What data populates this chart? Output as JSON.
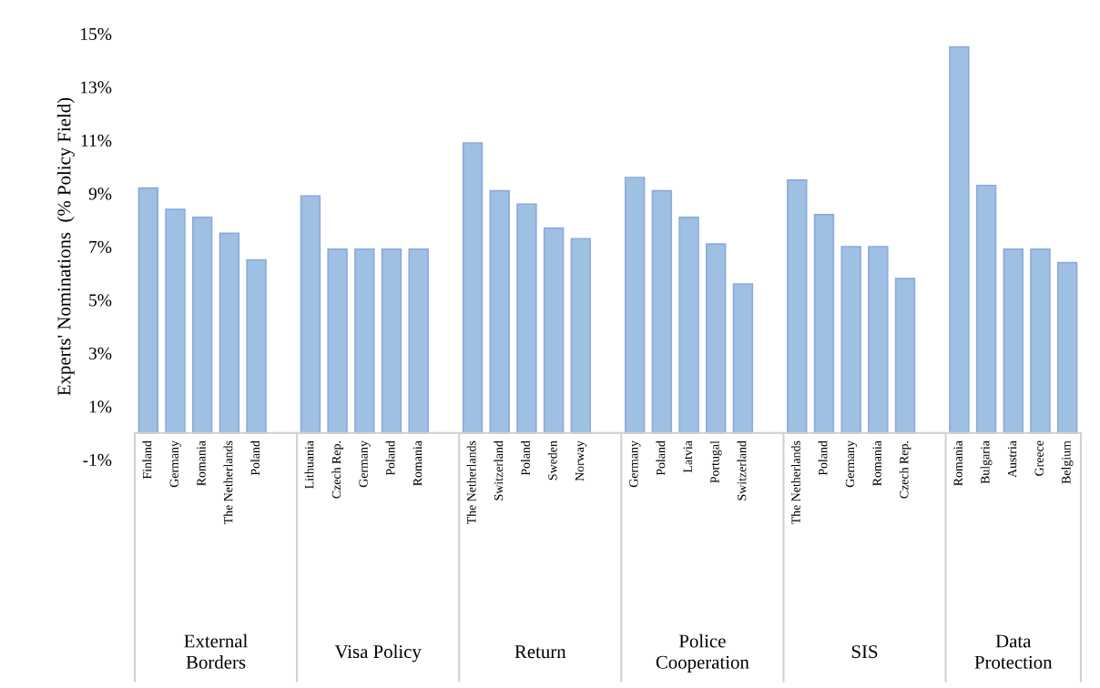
{
  "chart_data": {
    "type": "bar",
    "ylabel": "Experts' Nominations  (% Policy Field)",
    "categories": [
      "Finland",
      "Germany",
      "Romania",
      "The Netherlands",
      "Poland",
      null,
      "Lithuania",
      "Czech Rep.",
      "Germany",
      "Poland",
      "Romania",
      null,
      "The Netherlands",
      "Switzerland",
      "Poland",
      "Sweden",
      "Norway",
      null,
      "Germany",
      "Poland",
      "Latvia",
      "Portugal",
      "Switzerland",
      null,
      "The Netherlands",
      "Poland",
      "Germany",
      "Romania",
      "Czech Rep.",
      null,
      "Romania",
      "Bulgaria",
      "Austria",
      "Greece",
      "Belgium"
    ],
    "values": [
      9.2,
      8.4,
      8.1,
      7.5,
      6.5,
      null,
      8.9,
      6.9,
      6.9,
      6.9,
      6.9,
      null,
      10.9,
      9.1,
      8.6,
      7.7,
      7.3,
      null,
      9.6,
      9.1,
      8.1,
      7.1,
      5.6,
      null,
      9.5,
      8.2,
      7.0,
      7.0,
      5.8,
      null,
      14.5,
      9.3,
      6.9,
      6.9,
      6.4
    ],
    "color": "#9dc0e3",
    "annotations": [
      "External\nBorders",
      "Visa Policy",
      "Return",
      "Police\nCooperation",
      "SIS",
      "Data\nProtection"
    ],
    "ylim": [
      -1,
      15
    ],
    "yticks": [
      {
        "value": -1,
        "label": "-1%"
      },
      {
        "value": 1,
        "label": "1%"
      },
      {
        "value": 3,
        "label": "3%"
      },
      {
        "value": 5,
        "label": "5%"
      },
      {
        "value": 7,
        "label": "7%"
      },
      {
        "value": 9,
        "label": "9%"
      },
      {
        "value": 11,
        "label": "11%"
      },
      {
        "value": 13,
        "label": "13%"
      },
      {
        "value": 15,
        "label": "15%"
      }
    ],
    "grid": false,
    "legend": false
  }
}
